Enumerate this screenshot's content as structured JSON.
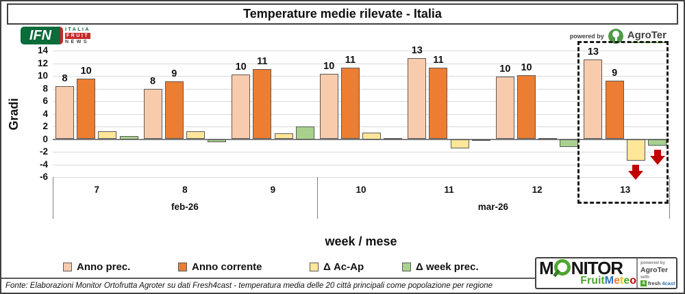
{
  "title": "Temperature medie rilevate - Italia",
  "header": {
    "ifn": {
      "abbr": "IFN",
      "line1": "ITALIA",
      "line2": "FRUIT",
      "line3": "NEWS"
    },
    "powered_by": "powered by",
    "agroter": "AgroTer"
  },
  "chart_data": {
    "type": "bar",
    "title": "Temperature medie rilevate - Italia",
    "ylabel": "Gradi",
    "xlabel": "week / mese",
    "ylim": [
      -6,
      14
    ],
    "yticks": [
      14,
      12,
      10,
      8,
      6,
      4,
      2,
      0,
      -2,
      -4,
      -6
    ],
    "grid": "horizontal",
    "legend_position": "bottom",
    "weeks": [
      "7",
      "8",
      "9",
      "10",
      "11",
      "12",
      "13"
    ],
    "month_groups": [
      {
        "label": "feb-26",
        "weeks": 3
      },
      {
        "label": "mar-26",
        "weeks": 4
      }
    ],
    "series": [
      {
        "name": "Anno prec.",
        "color": "#F8CBAD",
        "values": [
          8.4,
          7.9,
          10.2,
          10.3,
          12.8,
          9.9,
          12.6
        ],
        "labels": [
          "8",
          "8",
          "10",
          "10",
          "13",
          "10",
          "13"
        ]
      },
      {
        "name": "Anno corrente",
        "color": "#ED7D31",
        "values": [
          9.6,
          9.1,
          11.1,
          11.3,
          11.3,
          10.1,
          9.2
        ],
        "labels": [
          "10",
          "9",
          "11",
          "11",
          "11",
          "10",
          "9"
        ]
      },
      {
        "name": "Δ Ac-Ap",
        "color": "#FFE699",
        "values": [
          1.2,
          1.2,
          0.9,
          1.0,
          -1.5,
          0.2,
          -3.4
        ],
        "labels": [
          "",
          "",
          "",
          "",
          "",
          "",
          ""
        ]
      },
      {
        "name": "Δ week prec.",
        "color": "#A9D18E",
        "values": [
          0.5,
          -0.5,
          2.0,
          0.2,
          -0.1,
          -1.2,
          -1.0
        ],
        "labels": [
          "",
          "",
          "",
          "",
          "",
          "",
          ""
        ]
      }
    ],
    "annotations": {
      "highlight_box_week_index": 6,
      "down_arrows": [
        {
          "week_index": 6,
          "series_index": 2
        },
        {
          "week_index": 6,
          "series_index": 3
        }
      ],
      "arrow_color": "#C00000"
    }
  },
  "monitor_logo": {
    "word_pre": "M",
    "word_post": "NITOR",
    "fruit": "Fruit",
    "meteo_letters": [
      "M",
      "e",
      "t",
      "e",
      "o"
    ],
    "meteo_colors": [
      "#2E75B6",
      "#ED7D31",
      "#FFC000",
      "#4EA72E",
      "#C00000"
    ],
    "powered_by": "powered by",
    "agroter": "AgroTer",
    "with_label": "with",
    "fresh_icon": "4",
    "fresh_part1": "fresh",
    "fresh_part2": "4cast"
  },
  "footer": {
    "fonte": "Fonte: Elaborazioni Monitor Ortofrutta Agroter su dati Fresh4cast - temperatura media delle 20 città principali come popolazione per regione"
  }
}
